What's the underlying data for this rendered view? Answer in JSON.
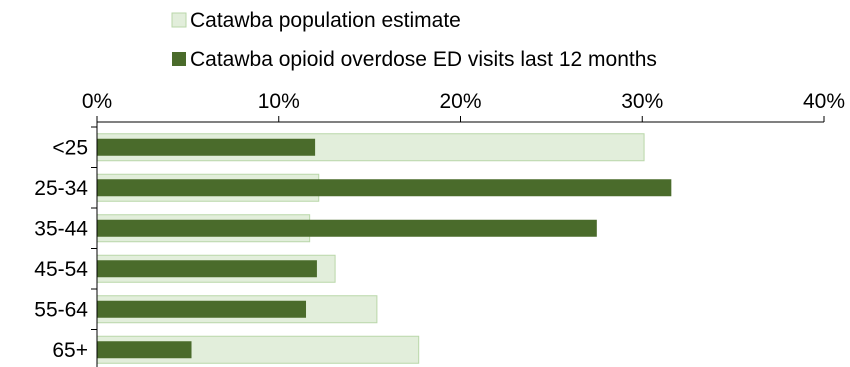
{
  "chart_data": {
    "type": "bar",
    "orientation": "horizontal",
    "categories": [
      "<25",
      "25-34",
      "35-44",
      "45-54",
      "55-64",
      "65+"
    ],
    "series": [
      {
        "name": "Catawba population estimate",
        "values": [
          30.1,
          12.2,
          11.7,
          13.1,
          15.4,
          17.7
        ],
        "color": "#e2eedb",
        "border": "#b9d7a9"
      },
      {
        "name": "Catawba opioid overdose ED visits last 12 months",
        "values": [
          12.0,
          31.6,
          27.5,
          12.1,
          11.5,
          5.2
        ],
        "color": "#4a6b2b"
      }
    ],
    "xlim": [
      0,
      40
    ],
    "xticks": [
      0,
      10,
      20,
      30,
      40
    ],
    "xtick_labels": [
      "0%",
      "10%",
      "20%",
      "30%",
      "40%"
    ],
    "axis_position": "top",
    "legend_position": "top",
    "grid": false
  }
}
